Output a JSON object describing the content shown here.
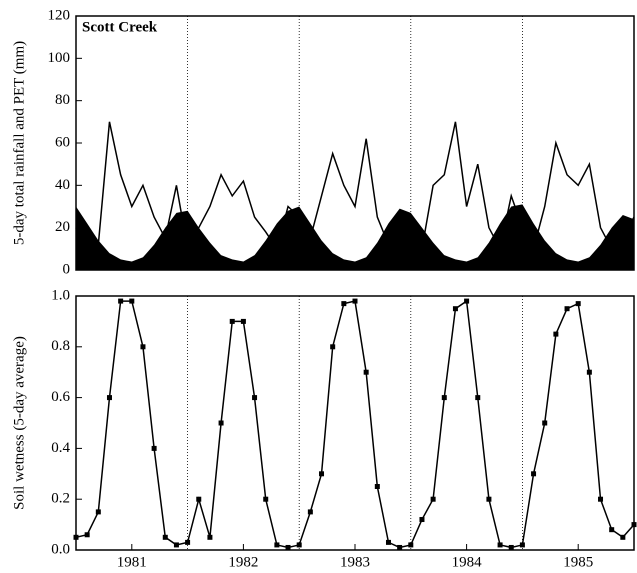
{
  "chart_data": [
    {
      "type": "line",
      "annotation": "Scott Creek",
      "ylabel": "5-day total rainfall and PET (mm)",
      "xlim": [
        1981,
        1986
      ],
      "ylim": [
        0,
        120
      ],
      "yticks": [
        0,
        20,
        40,
        60,
        80,
        100,
        120
      ],
      "xgrid_lines": [
        1982,
        1983,
        1984,
        1985
      ],
      "x": [
        1981,
        1981.1,
        1981.2,
        1981.3,
        1981.4,
        1981.5,
        1981.6,
        1981.7,
        1981.8,
        1981.9,
        1982,
        1982.1,
        1982.2,
        1982.3,
        1982.4,
        1982.5,
        1982.6,
        1982.7,
        1982.8,
        1982.9,
        1983,
        1983.1,
        1983.2,
        1983.3,
        1983.4,
        1983.5,
        1983.6,
        1983.7,
        1983.8,
        1983.9,
        1984,
        1984.1,
        1984.2,
        1984.3,
        1984.4,
        1984.5,
        1984.6,
        1984.7,
        1984.8,
        1984.9,
        1985,
        1985.1,
        1985.2,
        1985.3,
        1985.4,
        1985.5,
        1985.6,
        1985.7,
        1985.8,
        1985.9,
        1986
      ],
      "series": [
        {
          "style": "area",
          "color": "#000000",
          "values": [
            30,
            22,
            14,
            8,
            5,
            4,
            6,
            12,
            20,
            27,
            28,
            20,
            13,
            7,
            5,
            4,
            7,
            14,
            22,
            28,
            30,
            22,
            14,
            8,
            5,
            4,
            6,
            13,
            22,
            29,
            27,
            20,
            13,
            7,
            5,
            4,
            6,
            13,
            22,
            30,
            31,
            22,
            14,
            8,
            5,
            4,
            6,
            12,
            20,
            26,
            24
          ]
        },
        {
          "style": "line",
          "color": "#000000",
          "values": [
            20,
            8,
            12,
            70,
            45,
            30,
            40,
            25,
            15,
            40,
            10,
            20,
            30,
            45,
            35,
            42,
            25,
            18,
            10,
            30,
            25,
            15,
            35,
            55,
            40,
            30,
            62,
            25,
            12,
            20,
            15,
            10,
            40,
            45,
            70,
            30,
            50,
            20,
            10,
            35,
            20,
            10,
            30,
            60,
            45,
            40,
            50,
            20,
            10,
            15,
            25
          ]
        }
      ]
    },
    {
      "type": "line",
      "ylabel": "Soil wetness (5-day average)",
      "xlim": [
        1981,
        1986
      ],
      "ylim": [
        0,
        1
      ],
      "yticks": [
        {
          "value": 0,
          "label": "0.0"
        },
        0.2,
        0.4,
        0.6,
        0.8,
        {
          "value": 1,
          "label": "1.0"
        }
      ],
      "xticks": [
        {
          "value": 1981.5,
          "label": "1981"
        },
        {
          "value": 1982.5,
          "label": "1982"
        },
        {
          "value": 1983.5,
          "label": "1983"
        },
        {
          "value": 1984.5,
          "label": "1984"
        },
        {
          "value": 1985.5,
          "label": "1985"
        }
      ],
      "xgrid_lines": [
        1982,
        1983,
        1984,
        1985
      ],
      "marker": "square",
      "x": [
        1981,
        1981.1,
        1981.2,
        1981.3,
        1981.4,
        1981.5,
        1981.6,
        1981.7,
        1981.8,
        1981.9,
        1982,
        1982.1,
        1982.2,
        1982.3,
        1982.4,
        1982.5,
        1982.6,
        1982.7,
        1982.8,
        1982.9,
        1983,
        1983.1,
        1983.2,
        1983.3,
        1983.4,
        1983.5,
        1983.6,
        1983.7,
        1983.8,
        1983.9,
        1984,
        1984.1,
        1984.2,
        1984.3,
        1984.4,
        1984.5,
        1984.6,
        1984.7,
        1984.8,
        1984.9,
        1985,
        1985.1,
        1985.2,
        1985.3,
        1985.4,
        1985.5,
        1985.6,
        1985.7,
        1985.8,
        1985.9,
        1986
      ],
      "series": [
        {
          "style": "line",
          "color": "#000000",
          "values": [
            0.05,
            0.06,
            0.15,
            0.6,
            0.98,
            0.98,
            0.8,
            0.4,
            0.05,
            0.02,
            0.03,
            0.2,
            0.05,
            0.5,
            0.9,
            0.9,
            0.6,
            0.2,
            0.02,
            0.01,
            0.02,
            0.15,
            0.3,
            0.8,
            0.97,
            0.98,
            0.7,
            0.25,
            0.03,
            0.01,
            0.02,
            0.12,
            0.2,
            0.6,
            0.95,
            0.98,
            0.6,
            0.2,
            0.02,
            0.01,
            0.02,
            0.3,
            0.5,
            0.85,
            0.95,
            0.97,
            0.7,
            0.2,
            0.08,
            0.05,
            0.1
          ]
        }
      ]
    }
  ]
}
